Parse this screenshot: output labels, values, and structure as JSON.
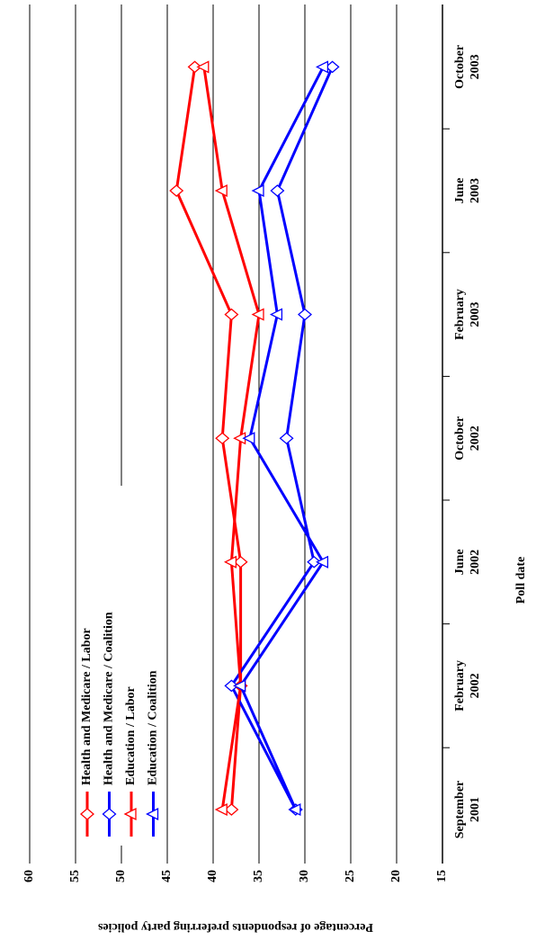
{
  "chart_data": {
    "type": "line",
    "x_label": "Poll date",
    "y_label": "Percentage of respondents preferring party policies",
    "categories": [
      [
        "September",
        "2001"
      ],
      [
        "February",
        "2002"
      ],
      [
        "June",
        "2002"
      ],
      [
        "October",
        "2002"
      ],
      [
        "February",
        "2003"
      ],
      [
        "June",
        "2003"
      ],
      [
        "October",
        "2003"
      ]
    ],
    "series": [
      {
        "name": "Health and Medicare / Labor",
        "color": "#ff0000",
        "marker": "diamond",
        "values": [
          38,
          37,
          37,
          39,
          38,
          44,
          42
        ]
      },
      {
        "name": "Health and Medicare / Coalition",
        "color": "#0000ff",
        "marker": "diamond",
        "values": [
          31,
          38,
          29,
          32,
          30,
          33,
          27
        ]
      },
      {
        "name": "Education / Labor",
        "color": "#ff0000",
        "marker": "triangle",
        "values": [
          39,
          37,
          38,
          37,
          35,
          39,
          41
        ]
      },
      {
        "name": "Education / Coalition",
        "color": "#0000ff",
        "marker": "triangle",
        "values": [
          31,
          37,
          28,
          36,
          33,
          35,
          28
        ]
      }
    ],
    "ylim": [
      15,
      60
    ],
    "yticks": [
      15,
      20,
      25,
      30,
      35,
      40,
      45,
      50,
      55,
      60
    ],
    "grid": true,
    "rotation": -90
  }
}
